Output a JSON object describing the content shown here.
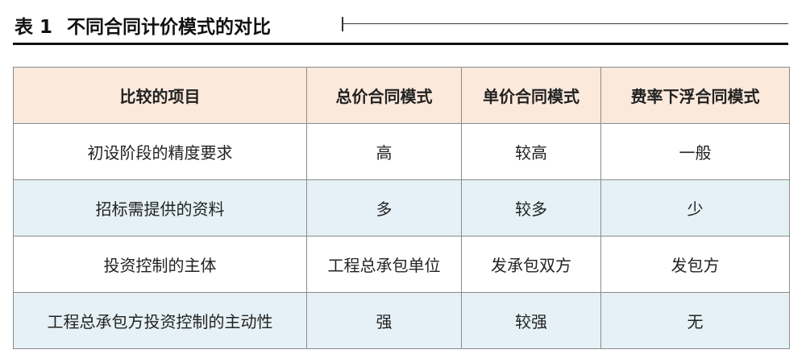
{
  "title": {
    "label": "表",
    "number": "1",
    "text": "不同合同计价模式的对比"
  },
  "colors": {
    "header_bg": "#fbe9dc",
    "alt_row_bg": "#e6f1f7"
  },
  "table": {
    "headers": [
      "比较的项目",
      "总价合同模式",
      "单价合同模式",
      "费率下浮合同模式"
    ],
    "rows": [
      [
        "初设阶段的精度要求",
        "高",
        "较高",
        "一般"
      ],
      [
        "招标需提供的资料",
        "多",
        "较多",
        "少"
      ],
      [
        "投资控制的主体",
        "工程总承包单位",
        "发承包双方",
        "发包方"
      ],
      [
        "工程总承包方投资控制的主动性",
        "强",
        "较强",
        "无"
      ]
    ]
  }
}
